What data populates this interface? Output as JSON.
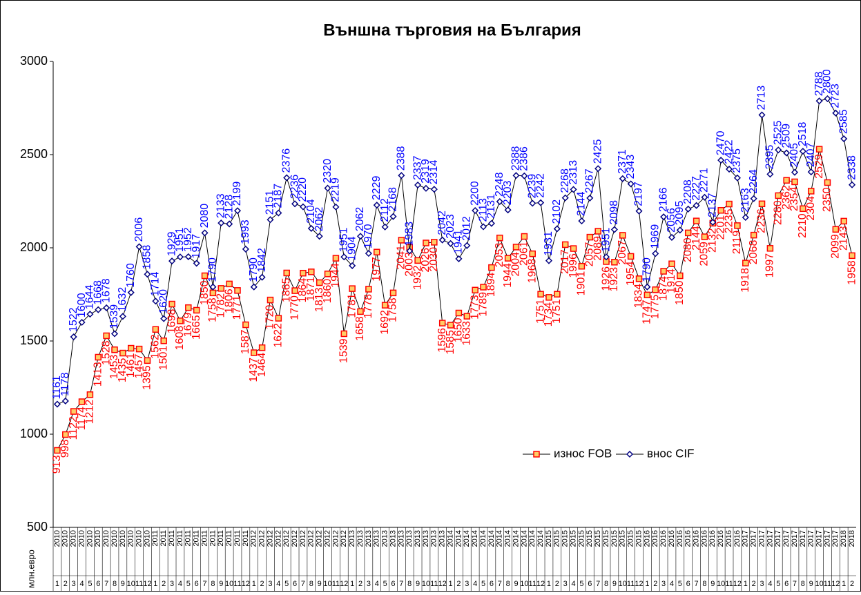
{
  "chart_data": {
    "type": "line",
    "title": "Външна търговия на България",
    "y_label": "млн.евро",
    "categories": [
      "1",
      "2",
      "3",
      "4",
      "5",
      "6",
      "7",
      "8",
      "9",
      "10",
      "11",
      "12",
      "1",
      "2",
      "3",
      "4",
      "5",
      "6",
      "7",
      "8",
      "9",
      "10",
      "11",
      "12",
      "1",
      "2",
      "3",
      "4",
      "5",
      "6",
      "7",
      "8",
      "9",
      "10",
      "11",
      "12",
      "1",
      "2",
      "3",
      "4",
      "5",
      "6",
      "7",
      "8",
      "9",
      "10",
      "11",
      "12",
      "1",
      "2",
      "3",
      "4",
      "5",
      "6",
      "7",
      "8",
      "9",
      "10",
      "11",
      "12",
      "1",
      "2",
      "3",
      "4",
      "5",
      "6",
      "7",
      "8",
      "9",
      "10",
      "11",
      "12",
      "1",
      "2",
      "3",
      "4",
      "5",
      "6",
      "7",
      "8",
      "9",
      "10",
      "11",
      "12",
      "1",
      "2",
      "3",
      "4",
      "5",
      "6",
      "7",
      "8",
      "9",
      "10",
      "11",
      "12",
      "1",
      "2"
    ],
    "category_years": [
      "2010",
      "2010",
      "2010",
      "2010",
      "2010",
      "2010",
      "2010",
      "2010",
      "2010",
      "2010",
      "2010",
      "2010",
      "2011",
      "2011",
      "2011",
      "2011",
      "2011",
      "2011",
      "2011",
      "2011",
      "2011",
      "2011",
      "2011",
      "2011",
      "2012",
      "2012",
      "2012",
      "2012",
      "2012",
      "2012",
      "2012",
      "2012",
      "2012",
      "2012",
      "2012",
      "2012",
      "2013",
      "2013",
      "2013",
      "2013",
      "2013",
      "2013",
      "2013",
      "2013",
      "2013",
      "2013",
      "2013",
      "2013",
      "2014",
      "2014",
      "2014",
      "2014",
      "2014",
      "2014",
      "2014",
      "2014",
      "2014",
      "2014",
      "2014",
      "2014",
      "2015",
      "2015",
      "2015",
      "2015",
      "2015",
      "2015",
      "2015",
      "2015",
      "2015",
      "2015",
      "2015",
      "2015",
      "2016",
      "2016",
      "2016",
      "2016",
      "2016",
      "2016",
      "2016",
      "2016",
      "2016",
      "2016",
      "2016",
      "2016",
      "2017",
      "2017",
      "2017",
      "2017",
      "2017",
      "2017",
      "2017",
      "2017",
      "2017",
      "2017",
      "2017",
      "2017",
      "2018",
      "2018"
    ],
    "series": [
      {
        "name": "износ FOB",
        "color": "#ff0000",
        "marker_fill": "#ffcc66",
        "marker": "square",
        "values": [
          913,
          998,
          1122,
          1174,
          1212,
          1413,
          1528,
          1453,
          1435,
          1461,
          1457,
          1395,
          1562,
          1501,
          1698,
          1608,
          1679,
          1665,
          1850,
          1758,
          1782,
          1806,
          1771,
          1587,
          1437,
          1464,
          1720,
          1622,
          1865,
          1770,
          1864,
          1871,
          1813,
          1860,
          1944,
          1539,
          1781,
          1658,
          1778,
          1977,
          1692,
          1758,
          2041,
          2003,
          1932,
          2026,
          2030,
          1596,
          1585,
          1650,
          1633,
          1773,
          1789,
          1894,
          2053,
          1944,
          2004,
          2061,
          1968,
          1751,
          1734,
          1751,
          2017,
          1996,
          1901,
          2057,
          2089,
          1926,
          1923,
          2067,
          1954,
          1834,
          1747,
          1775,
          1874,
          1914,
          1850,
          2080,
          2144,
          2059,
          2132,
          2201,
          2235,
          2119,
          1918,
          2068,
          2236,
          1997,
          2280,
          2362,
          2354,
          2210,
          2304,
          2529,
          2350,
          2099,
          2143,
          1958
        ]
      },
      {
        "name": "внос CIF",
        "color": "#0000ff",
        "marker_fill": "#ffffff",
        "marker": "diamond",
        "values": [
          1161,
          1178,
          1522,
          1600,
          1644,
          1668,
          1678,
          1539,
          1632,
          1760,
          2006,
          1858,
          1714,
          1620,
          1929,
          1951,
          1952,
          1917,
          2080,
          1790,
          2133,
          2128,
          2199,
          1993,
          1790,
          1842,
          2151,
          2187,
          2376,
          2236,
          2220,
          2104,
          2062,
          2320,
          2219,
          1951,
          1904,
          2062,
          1970,
          2229,
          2112,
          2168,
          2388,
          1983,
          2337,
          2319,
          2314,
          2042,
          2023,
          1941,
          2012,
          2200,
          2113,
          2131,
          2248,
          2203,
          2388,
          2386,
          2239,
          2242,
          1931,
          2102,
          2268,
          2313,
          2144,
          2267,
          2425,
          1951,
          2098,
          2371,
          2343,
          2197,
          1790,
          1969,
          2166,
          2056,
          2095,
          2208,
          2227,
          2271,
          2137,
          2470,
          2422,
          2375,
          2163,
          2264,
          2713,
          2395,
          2525,
          2509,
          2405,
          2518,
          2407,
          2788,
          2800,
          2723,
          2585,
          2338
        ]
      }
    ],
    "ylim": [
      500,
      3000
    ],
    "yticks": [
      500,
      1000,
      1500,
      2000,
      2500,
      3000
    ],
    "grid": false,
    "legend": "inside-right"
  }
}
